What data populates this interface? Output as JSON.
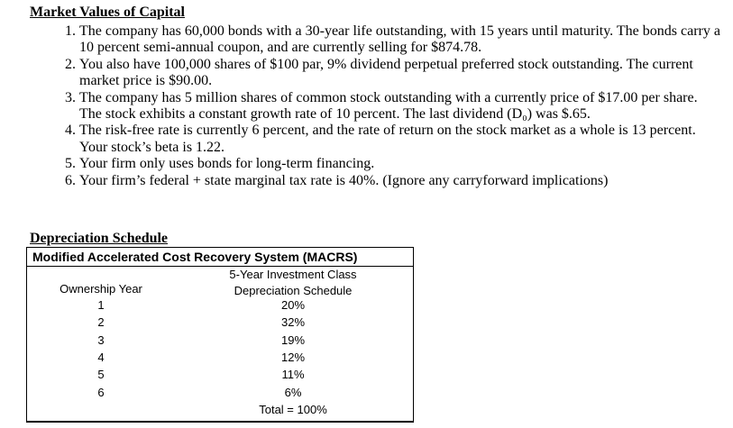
{
  "market_values": {
    "title": "Market Values of Capital",
    "items": [
      "The company has 60,000 bonds with a 30-year life outstanding, with 15 years until maturity. The bonds carry a 10 percent semi-annual coupon, and are currently selling for $874.78.",
      "You also have 100,000 shares of $100 par, 9% dividend perpetual preferred stock outstanding. The current market price is $90.00.",
      "The company has 5 million shares of common stock outstanding with a currently price of $17.00 per share. The stock exhibits a constant growth rate of 10 percent. The last dividend (D₀) was $.65.",
      "The risk-free rate is currently 6 percent, and the rate of return on the stock market as a whole is 13 percent. Your stock’s beta is 1.22.",
      "Your firm only uses bonds for long-term financing.",
      "Your firm’s federal + state marginal tax rate is 40%. (Ignore any carryforward implications)"
    ]
  },
  "depreciation": {
    "title": "Depreciation Schedule",
    "table": {
      "caption": "Modified Accelerated Cost Recovery System (MACRS)",
      "header": {
        "col1": "Ownership Year",
        "col2_line1": "5-Year Investment Class",
        "col2_line2": "Depreciation Schedule"
      },
      "rows": [
        [
          "1",
          "20%"
        ],
        [
          "2",
          "32%"
        ],
        [
          "3",
          "19%"
        ],
        [
          "4",
          "12%"
        ],
        [
          "5",
          "11%"
        ],
        [
          "6",
          "6%"
        ]
      ],
      "total": "Total = 100%"
    }
  }
}
